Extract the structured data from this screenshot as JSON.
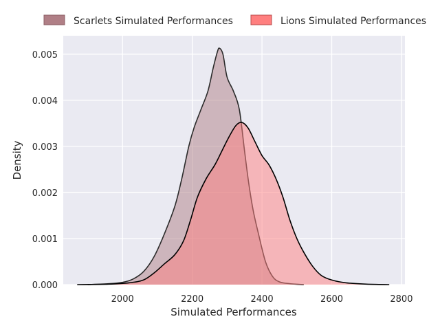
{
  "chart_data": {
    "type": "area",
    "xlabel": "Simulated Performances",
    "ylabel": "Density",
    "xlim": [
      1830,
      2810
    ],
    "ylim": [
      0,
      0.0054
    ],
    "x_ticks": [
      2000,
      2200,
      2400,
      2600,
      2800
    ],
    "y_ticks": [
      0.0,
      0.001,
      0.002,
      0.003,
      0.004,
      0.005
    ],
    "y_tick_labels": [
      "0.000",
      "0.001",
      "0.002",
      "0.003",
      "0.004",
      "0.005"
    ],
    "grid": true,
    "legend_position": "top",
    "series": [
      {
        "name": "Scarlets Simulated Performances",
        "fill": "#b07f86",
        "points": [
          [
            1900,
            0.0
          ],
          [
            1960,
            2e-05
          ],
          [
            2000,
            5e-05
          ],
          [
            2030,
            0.00012
          ],
          [
            2060,
            0.00028
          ],
          [
            2090,
            0.0006
          ],
          [
            2120,
            0.0011
          ],
          [
            2150,
            0.0017
          ],
          [
            2170,
            0.0023
          ],
          [
            2190,
            0.003
          ],
          [
            2205,
            0.0034
          ],
          [
            2225,
            0.0038
          ],
          [
            2245,
            0.0042
          ],
          [
            2260,
            0.0047
          ],
          [
            2272,
            0.00505
          ],
          [
            2278,
            0.00513
          ],
          [
            2288,
            0.005
          ],
          [
            2300,
            0.0045
          ],
          [
            2318,
            0.0042
          ],
          [
            2335,
            0.0038
          ],
          [
            2350,
            0.0029
          ],
          [
            2362,
            0.0022
          ],
          [
            2375,
            0.0016
          ],
          [
            2390,
            0.0011
          ],
          [
            2410,
            0.0005
          ],
          [
            2430,
            0.00018
          ],
          [
            2450,
            6e-05
          ],
          [
            2480,
            2e-05
          ],
          [
            2520,
            0.0
          ]
        ]
      },
      {
        "name": "Lions Simulated Performances",
        "fill": "#ff7f7f",
        "points": [
          [
            1870,
            0.0
          ],
          [
            1960,
            1e-05
          ],
          [
            2020,
            4e-05
          ],
          [
            2060,
            0.0001
          ],
          [
            2090,
            0.00025
          ],
          [
            2120,
            0.00045
          ],
          [
            2150,
            0.00065
          ],
          [
            2175,
            0.00095
          ],
          [
            2195,
            0.0014
          ],
          [
            2215,
            0.0019
          ],
          [
            2240,
            0.0023
          ],
          [
            2265,
            0.0026
          ],
          [
            2285,
            0.0029
          ],
          [
            2305,
            0.0032
          ],
          [
            2325,
            0.00345
          ],
          [
            2342,
            0.00352
          ],
          [
            2360,
            0.0034
          ],
          [
            2380,
            0.0031
          ],
          [
            2400,
            0.0028
          ],
          [
            2420,
            0.0026
          ],
          [
            2440,
            0.0023
          ],
          [
            2460,
            0.0019
          ],
          [
            2480,
            0.0014
          ],
          [
            2500,
            0.001
          ],
          [
            2520,
            0.0007
          ],
          [
            2545,
            0.0004
          ],
          [
            2570,
            0.0002
          ],
          [
            2600,
            0.0001
          ],
          [
            2640,
            4e-05
          ],
          [
            2700,
            1e-05
          ],
          [
            2765,
            0.0
          ]
        ]
      }
    ]
  }
}
